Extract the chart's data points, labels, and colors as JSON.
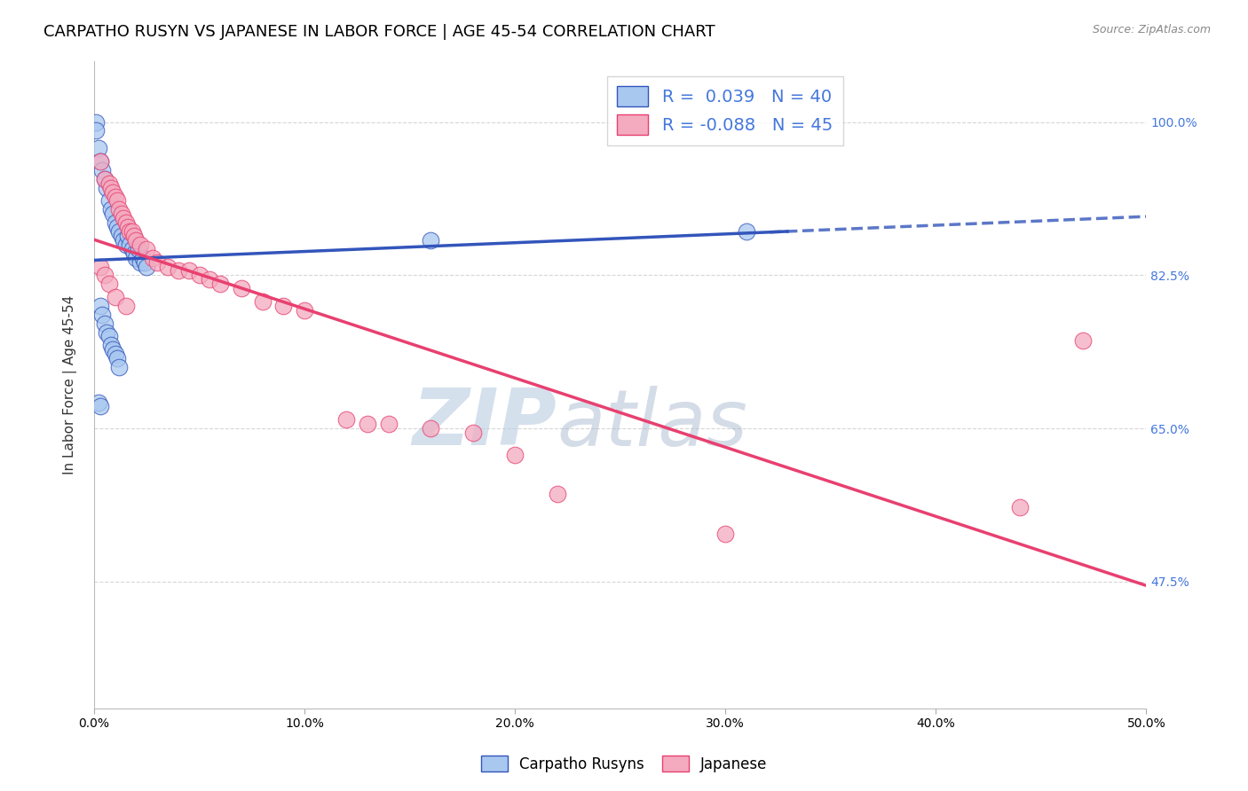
{
  "title": "CARPATHO RUSYN VS JAPANESE IN LABOR FORCE | AGE 45-54 CORRELATION CHART",
  "source": "Source: ZipAtlas.com",
  "ylabel": "In Labor Force | Age 45-54",
  "xlim": [
    0.0,
    0.5
  ],
  "ylim": [
    0.33,
    1.07
  ],
  "yticks": [
    0.475,
    0.65,
    0.825,
    1.0
  ],
  "ytick_labels": [
    "47.5%",
    "65.0%",
    "82.5%",
    "100.0%"
  ],
  "xticks": [
    0.0,
    0.1,
    0.2,
    0.3,
    0.4,
    0.5
  ],
  "xtick_labels": [
    "0.0%",
    "10.0%",
    "20.0%",
    "30.0%",
    "40.0%",
    "50.0%"
  ],
  "blue_R": 0.039,
  "blue_N": 40,
  "pink_R": -0.088,
  "pink_N": 45,
  "blue_color": "#A8C8F0",
  "pink_color": "#F4AABF",
  "blue_line_color": "#3355BB",
  "pink_line_color": "#E84070",
  "legend_label_blue": "Carpatho Rusyns",
  "legend_label_pink": "Japanese",
  "blue_points_x": [
    0.001,
    0.001,
    0.002,
    0.003,
    0.004,
    0.005,
    0.006,
    0.007,
    0.008,
    0.009,
    0.01,
    0.011,
    0.012,
    0.013,
    0.014,
    0.015,
    0.016,
    0.017,
    0.018,
    0.019,
    0.02,
    0.021,
    0.022,
    0.023,
    0.024,
    0.025,
    0.003,
    0.004,
    0.005,
    0.006,
    0.007,
    0.008,
    0.009,
    0.01,
    0.011,
    0.012,
    0.002,
    0.003,
    0.31,
    0.16
  ],
  "blue_points_y": [
    1.0,
    0.99,
    0.97,
    0.955,
    0.945,
    0.935,
    0.925,
    0.91,
    0.9,
    0.895,
    0.885,
    0.88,
    0.875,
    0.87,
    0.865,
    0.86,
    0.87,
    0.86,
    0.855,
    0.85,
    0.845,
    0.855,
    0.84,
    0.845,
    0.84,
    0.835,
    0.79,
    0.78,
    0.77,
    0.76,
    0.755,
    0.745,
    0.74,
    0.735,
    0.73,
    0.72,
    0.68,
    0.675,
    0.875,
    0.865
  ],
  "pink_points_x": [
    0.003,
    0.005,
    0.007,
    0.008,
    0.009,
    0.01,
    0.011,
    0.012,
    0.013,
    0.014,
    0.015,
    0.016,
    0.017,
    0.018,
    0.019,
    0.02,
    0.022,
    0.025,
    0.028,
    0.03,
    0.035,
    0.04,
    0.045,
    0.05,
    0.055,
    0.06,
    0.07,
    0.08,
    0.09,
    0.1,
    0.12,
    0.13,
    0.14,
    0.16,
    0.18,
    0.2,
    0.22,
    0.3,
    0.44,
    0.47,
    0.003,
    0.005,
    0.007,
    0.01,
    0.015
  ],
  "pink_points_y": [
    0.955,
    0.935,
    0.93,
    0.925,
    0.92,
    0.915,
    0.91,
    0.9,
    0.895,
    0.89,
    0.885,
    0.88,
    0.875,
    0.875,
    0.87,
    0.865,
    0.86,
    0.855,
    0.845,
    0.84,
    0.835,
    0.83,
    0.83,
    0.825,
    0.82,
    0.815,
    0.81,
    0.795,
    0.79,
    0.785,
    0.66,
    0.655,
    0.655,
    0.65,
    0.645,
    0.62,
    0.575,
    0.53,
    0.56,
    0.75,
    0.835,
    0.825,
    0.815,
    0.8,
    0.79
  ],
  "background_color": "#FFFFFF",
  "grid_color": "#CCCCCC",
  "watermark_zip": "ZIP",
  "watermark_atlas": "atlas",
  "watermark_color_zip": "#B8CCE0",
  "watermark_color_atlas": "#AABBD0",
  "title_fontsize": 13,
  "axis_label_fontsize": 11,
  "tick_fontsize": 10,
  "right_tick_color": "#4477DD",
  "blue_line_solid_end": 0.33,
  "blue_line_dashed_start": 0.32
}
